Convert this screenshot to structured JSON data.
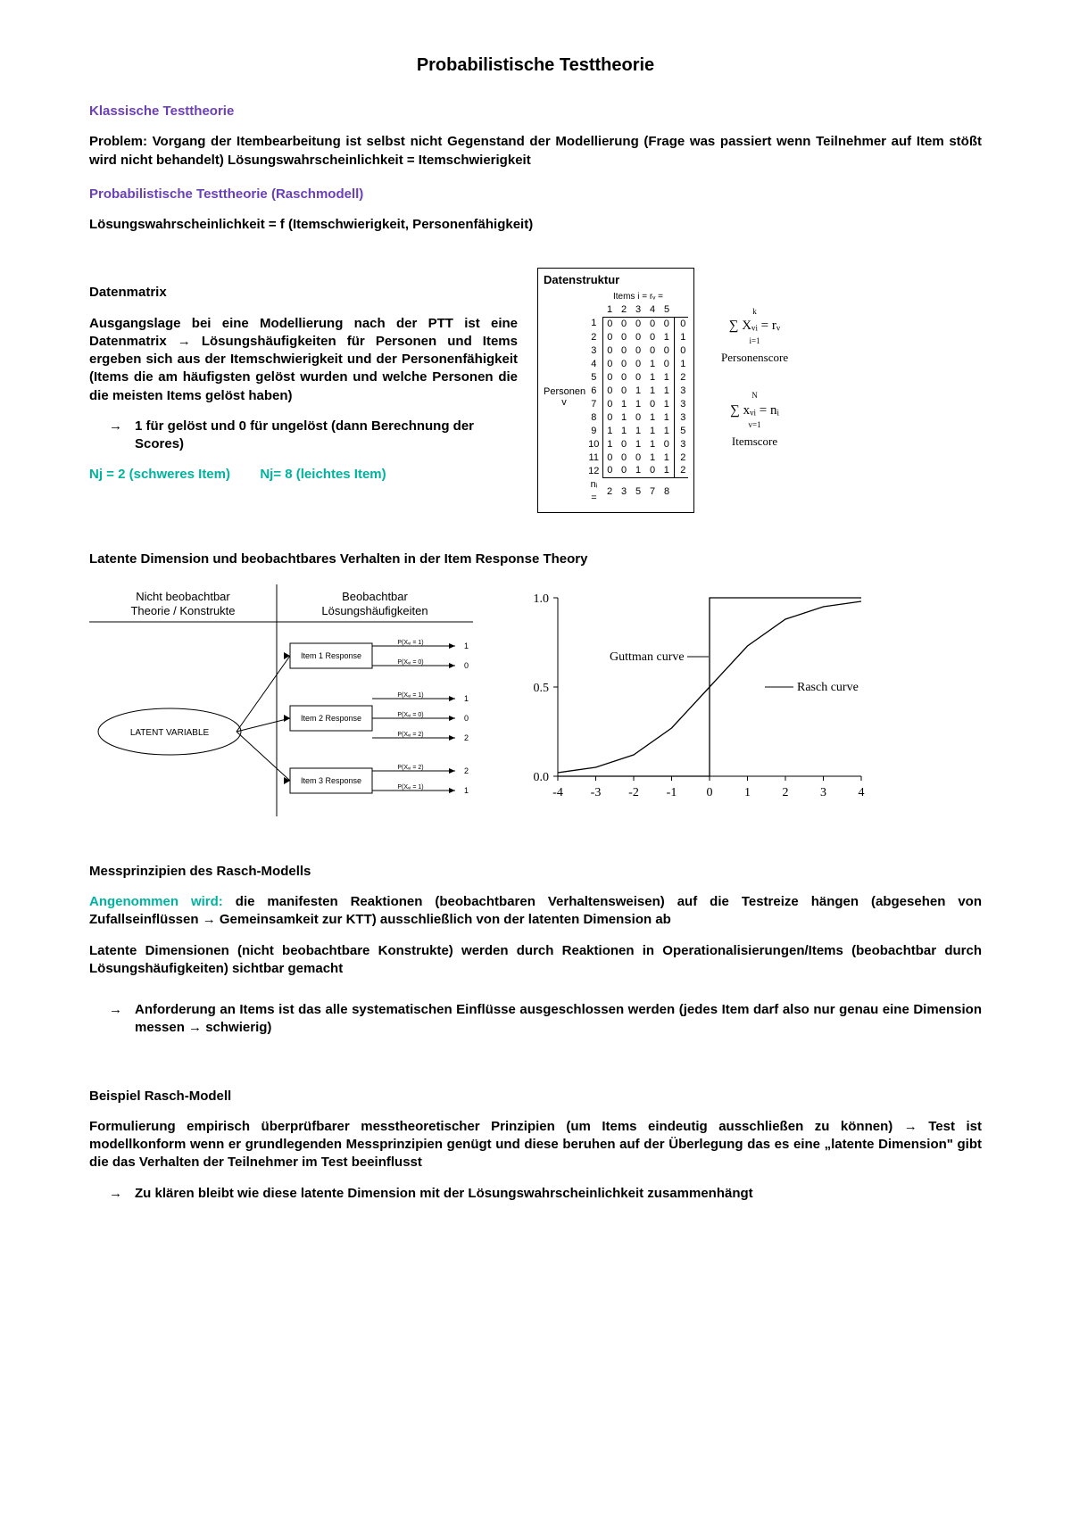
{
  "page_title": "Probabilistische Testtheorie",
  "sec1_head": "Klassische Testtheorie",
  "sec1_p1": "Problem: Vorgang der Itembearbeitung ist selbst nicht Gegenstand der Modellierung (Frage was passiert wenn Teilnehmer auf Item stößt wird nicht behandelt) Lösungswahrscheinlichkeit = Itemschwierigkeit",
  "sec2_head": "Probabilistische Testtheorie (Raschmodell)",
  "sec2_p1": "Lösungswahrscheinlichkeit = f (Itemschwierigkeit, Personenfähigkeit)",
  "dm": {
    "head": "Datenmatrix",
    "p1": "Ausgangslage bei eine Modellierung nach der PTT ist eine Datenmatrix → Lösungshäufigkeiten für Personen und Items ergeben sich aus der Itemschwierigkeit und der Personenfähigkeit (Items die am häufigsten gelöst wurden und welche Personen die die meisten Items gelöst haben)",
    "b1": "1 für gelöst und 0 für ungelöst (dann Berechnung der Scores)",
    "nj1": "Nj = 2 (schweres Item)",
    "nj2": "Nj= 8 (leichtes Item)"
  },
  "ds": {
    "title": "Datenstruktur",
    "items_label": "Items  i =    rᵥ =",
    "cols": [
      "1",
      "2",
      "3",
      "4",
      "5"
    ],
    "rows": [
      [
        "1",
        "0",
        "0",
        "0",
        "0",
        "0",
        "0"
      ],
      [
        "2",
        "0",
        "0",
        "0",
        "0",
        "1",
        "1"
      ],
      [
        "3",
        "0",
        "0",
        "0",
        "0",
        "0",
        "0"
      ],
      [
        "4",
        "0",
        "0",
        "0",
        "1",
        "0",
        "1"
      ],
      [
        "5",
        "0",
        "0",
        "0",
        "1",
        "1",
        "2"
      ],
      [
        "6",
        "0",
        "0",
        "1",
        "1",
        "1",
        "3"
      ],
      [
        "7",
        "0",
        "1",
        "1",
        "0",
        "1",
        "3"
      ],
      [
        "8",
        "0",
        "1",
        "0",
        "1",
        "1",
        "3"
      ],
      [
        "9",
        "1",
        "1",
        "1",
        "1",
        "1",
        "5"
      ],
      [
        "10",
        "1",
        "0",
        "1",
        "1",
        "0",
        "3"
      ],
      [
        "11",
        "0",
        "0",
        "0",
        "1",
        "1",
        "2"
      ],
      [
        "12",
        "0",
        "0",
        "1",
        "0",
        "1",
        "2"
      ]
    ],
    "person_label": "Personen v",
    "ni_lbl": "nᵢ =",
    "ni": [
      "2",
      "3",
      "5",
      "7",
      "8"
    ],
    "f_personscore_eq": "∑ Xᵥᵢ = rᵥ",
    "f_personscore_sub": "Personenscore",
    "f_itemscore_eq": "∑ xᵥᵢ = nᵢ",
    "f_itemscore_sub": "Itemscore",
    "f_sup1": "k",
    "f_low1": "i=1",
    "f_sup2": "N",
    "f_low2": "v=1"
  },
  "irt": {
    "head": "Latente Dimension und beobachtbares Verhalten in der Item Response Theory",
    "left_head1": "Nicht beobachtbar",
    "left_head2": "Theorie / Konstrukte",
    "right_head1": "Beobachtbar",
    "right_head2": "Lösungshäufigkeiten",
    "latent": "LATENT VARIABLE",
    "items": [
      "Item 1 Response",
      "Item 2 Response",
      "Item 3 Response"
    ],
    "p_labels": [
      "P(Xᵥᵢ = 1)",
      "P(Xᵥᵢ = 0)",
      "P(Xᵥᵢ = 1)",
      "P(Xᵥᵢ = 0)",
      "P(Xᵥᵢ = 2)",
      "P(Xᵥᵢ = 2)",
      "P(Xᵥᵢ = 1)"
    ],
    "out_right": [
      "1",
      "0",
      "1",
      "0",
      "2",
      "2",
      "1"
    ]
  },
  "curve": {
    "y_ticks": [
      "1.0",
      "0.5",
      "0.0"
    ],
    "x_ticks": [
      "-4",
      "-3",
      "-2",
      "-1",
      "0",
      "1",
      "2",
      "3",
      "4"
    ],
    "guttman": "Guttman curve",
    "rasch": "Rasch curve",
    "rasch_points": [
      [
        -4,
        0.02
      ],
      [
        -3,
        0.05
      ],
      [
        -2,
        0.12
      ],
      [
        -1,
        0.27
      ],
      [
        0,
        0.5
      ],
      [
        1,
        0.73
      ],
      [
        2,
        0.88
      ],
      [
        3,
        0.95
      ],
      [
        4,
        0.98
      ]
    ],
    "axis_color": "#000000",
    "line_color": "#000000",
    "bg": "#ffffff"
  },
  "mess": {
    "head": "Messprinzipien des Rasch-Modells",
    "lead_teal": "Angenommen wird:",
    "p1_rest": " die manifesten Reaktionen (beobachtbaren Verhaltensweisen) auf die Testreize hängen (abgesehen von Zufallseinflüssen → Gemeinsamkeit zur KTT) ausschließlich von der latenten Dimension ab",
    "p2": "Latente Dimensionen (nicht beobachtbare Konstrukte) werden durch Reaktionen in Operationalisierungen/Items (beobachtbar durch Lösungshäufigkeiten) sichtbar gemacht",
    "b1": "Anforderung an Items ist das alle systematischen Einflüsse ausgeschlossen werden (jedes Item darf also nur genau eine Dimension messen → schwierig)"
  },
  "bsp": {
    "head": "Beispiel Rasch-Modell",
    "p1": "Formulierung empirisch überprüfbarer messtheoretischer Prinzipien (um Items eindeutig ausschließen zu können) → Test ist modellkonform wenn er grundlegenden Messprinzipien genügt und diese beruhen auf der Überlegung das es eine „latente Dimension\" gibt die das Verhalten der Teilnehmer im Test beeinflusst",
    "b1": "Zu klären bleibt wie diese latente Dimension mit der Lösungswahrscheinlichkeit zusammenhängt"
  },
  "colors": {
    "purple": "#6b3fb8",
    "teal": "#00b39e",
    "text": "#000000"
  }
}
